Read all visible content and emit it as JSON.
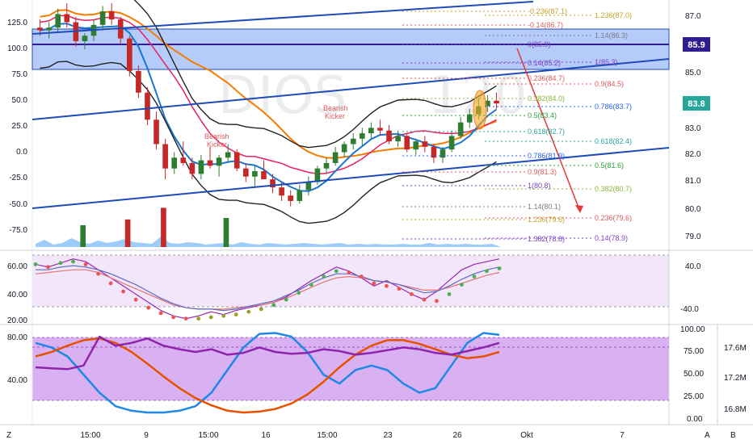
{
  "watermark": {
    "symbol": "DIOS",
    "interval": "120"
  },
  "price_badges": {
    "current": "83.8",
    "level": "85.9"
  },
  "left_axis": {
    "main_ticks": [
      "125.0",
      "100.0",
      "75.0",
      "50.0",
      "25.0",
      "0.0",
      "-25.0",
      "-50.0",
      "-75.0"
    ],
    "rsi_ticks": [
      "60.00",
      "40.00",
      "20.00"
    ],
    "stoch_ticks": [
      "80.00",
      "40.00"
    ]
  },
  "right_axis": {
    "price_ticks": [
      "87.0",
      "86.0",
      "85.0",
      "84.0",
      "83.0",
      "82.0",
      "81.0",
      "80.0",
      "79.0"
    ],
    "rsi_ticks": [
      "40.0",
      "-40.0"
    ],
    "stoch_ticks": [
      "100.00",
      "75.00",
      "50.00",
      "25.00",
      "0.00"
    ],
    "volume_ticks": [
      "17.6M",
      "17.2M",
      "16.8M"
    ]
  },
  "time_axis": {
    "labels": [
      "15:00",
      "9",
      "15:00",
      "16",
      "15:00",
      "23",
      "26",
      "Okt",
      "7"
    ]
  },
  "corner_buttons": {
    "left": "Z",
    "auto": "A",
    "log": "B"
  },
  "annotations": [
    {
      "text": "Bearish",
      "sub": "Kicker"
    },
    {
      "text": "Bearish",
      "sub": "Kicker"
    }
  ],
  "fib_left": [
    {
      "label": "-0.236(87.1)",
      "color": "#c9a227"
    },
    {
      "label": "-0.14(86.7)",
      "color": "#e05a5a"
    },
    {
      "label": "0(85.9)",
      "color": "#7b3fbf"
    },
    {
      "label": "0.14(85.2)",
      "color": "#7b3fbf"
    },
    {
      "label": "0.236(84.7)",
      "color": "#e05a5a"
    },
    {
      "label": "0.382(84.0)",
      "color": "#8bb83a"
    },
    {
      "label": "0.5(83.4)",
      "color": "#2e9e3e"
    },
    {
      "label": "0.618(82.7)",
      "color": "#26a69a"
    },
    {
      "label": "0.786(81.9)",
      "color": "#2962ff"
    },
    {
      "label": "0.9(81.3)",
      "color": "#e05a5a"
    },
    {
      "label": "1(80.8)",
      "color": "#7b3fbf"
    },
    {
      "label": "1.14(80.1)",
      "color": "#787b86"
    },
    {
      "label": "1.236(79.6)",
      "color": "#c9a227"
    },
    {
      "label": "1.382(78.8)",
      "color": "#7b3fbf"
    }
  ],
  "fib_right": [
    {
      "label": "1.236(87.0)",
      "color": "#c9a227"
    },
    {
      "label": "1.14(86.3)",
      "color": "#787b86"
    },
    {
      "label": "1(85.3)",
      "color": "#7b3fbf"
    },
    {
      "label": "0.9(84.5)",
      "color": "#e05a5a"
    },
    {
      "label": "0.786(83.7)",
      "color": "#2962ff"
    },
    {
      "label": "0.618(82.4)",
      "color": "#26a69a"
    },
    {
      "label": "0.5(81.6)",
      "color": "#2e9e3e"
    },
    {
      "label": "0.382(80.7)",
      "color": "#8bb83a"
    },
    {
      "label": "0.236(79.6)",
      "color": "#e05a5a"
    },
    {
      "label": "0.14(78.9)",
      "color": "#7b3fbf"
    }
  ],
  "colors": {
    "up": "#2e7d32",
    "down": "#c62828",
    "blue": "#1e4bb8",
    "zone": "#5b8ff5",
    "orange": "#f57c00",
    "purple": "#9c27b0",
    "level": "#311b92",
    "price": "#26a69a"
  },
  "chart_data": [
    {
      "type": "candlestick",
      "description_scale": "price 78.5–87.5",
      "price_axis": [
        78.5,
        87.5
      ],
      "candles": [
        [
          86.6,
          86.9,
          86.3,
          86.5
        ],
        [
          86.5,
          86.8,
          86.2,
          86.6
        ],
        [
          86.6,
          87.3,
          86.4,
          87.1
        ],
        [
          87.1,
          87.5,
          86.6,
          86.8
        ],
        [
          86.8,
          87.0,
          85.9,
          86.1
        ],
        [
          86.1,
          86.4,
          85.8,
          86.3
        ],
        [
          86.3,
          86.9,
          86.1,
          86.7
        ],
        [
          86.7,
          87.4,
          86.5,
          87.2
        ],
        [
          87.2,
          87.5,
          86.7,
          86.9
        ],
        [
          86.9,
          87.0,
          86.0,
          86.2
        ],
        [
          86.2,
          86.3,
          84.8,
          85.0
        ],
        [
          85.0,
          85.2,
          84.0,
          84.2
        ],
        [
          84.2,
          84.4,
          83.0,
          83.2
        ],
        [
          83.2,
          83.5,
          82.1,
          82.3
        ],
        [
          82.3,
          82.5,
          81.0,
          81.4
        ],
        [
          81.4,
          82.0,
          81.2,
          81.8
        ],
        [
          81.8,
          82.4,
          81.5,
          81.6
        ],
        [
          81.6,
          81.8,
          81.0,
          81.2
        ],
        [
          81.2,
          81.9,
          81.0,
          81.7
        ],
        [
          81.7,
          82.2,
          81.4,
          81.5
        ],
        [
          81.5,
          81.9,
          81.1,
          81.8
        ],
        [
          81.8,
          82.3,
          81.6,
          82.0
        ],
        [
          82.0,
          82.1,
          81.3,
          81.4
        ],
        [
          81.4,
          81.6,
          80.9,
          81.1
        ],
        [
          81.1,
          81.5,
          80.7,
          81.3
        ],
        [
          81.3,
          81.7,
          81.0,
          81.0
        ],
        [
          81.0,
          81.2,
          80.5,
          80.7
        ],
        [
          80.7,
          80.9,
          80.2,
          80.4
        ],
        [
          80.4,
          80.6,
          80.0,
          80.2
        ],
        [
          80.2,
          80.8,
          80.1,
          80.6
        ],
        [
          80.6,
          81.1,
          80.4,
          80.9
        ],
        [
          80.9,
          81.5,
          80.8,
          81.4
        ],
        [
          81.4,
          81.8,
          81.2,
          81.6
        ],
        [
          81.6,
          82.2,
          81.5,
          82.0
        ],
        [
          82.0,
          82.4,
          81.8,
          82.3
        ],
        [
          82.3,
          82.7,
          82.1,
          82.5
        ],
        [
          82.5,
          82.9,
          82.2,
          82.7
        ],
        [
          82.7,
          83.1,
          82.5,
          82.9
        ],
        [
          82.9,
          83.2,
          82.6,
          82.8
        ],
        [
          82.8,
          83.0,
          82.3,
          82.4
        ],
        [
          82.4,
          82.8,
          82.2,
          82.6
        ],
        [
          82.6,
          82.7,
          82.0,
          82.1
        ],
        [
          82.1,
          82.5,
          81.9,
          82.4
        ],
        [
          82.4,
          82.6,
          82.0,
          82.2
        ],
        [
          82.2,
          82.3,
          81.6,
          81.8
        ],
        [
          81.8,
          82.2,
          81.6,
          82.1
        ],
        [
          82.1,
          82.8,
          82.0,
          82.6
        ],
        [
          82.6,
          83.3,
          82.5,
          83.1
        ],
        [
          83.1,
          83.6,
          82.9,
          83.4
        ],
        [
          83.4,
          84.0,
          83.2,
          83.7
        ],
        [
          83.7,
          84.1,
          83.5,
          83.9
        ],
        [
          83.9,
          84.2,
          83.6,
          83.8
        ]
      ],
      "volume": [
        0.4,
        0.9,
        0.3,
        0.5,
        1.1,
        0.6,
        0.4,
        0.8,
        0.5,
        0.7,
        1.0,
        0.6,
        0.5,
        0.4,
        1.3,
        0.5,
        0.4,
        0.6,
        0.5,
        0.3,
        0.4,
        0.5,
        0.3,
        0.6,
        0.4,
        0.3,
        0.5,
        0.4,
        0.3,
        0.4,
        0.5,
        0.4,
        0.3,
        0.4,
        0.5,
        0.3,
        0.4,
        0.3,
        0.4,
        0.3,
        0.3,
        0.4,
        0.3,
        0.3,
        0.5,
        0.3,
        0.4,
        0.3,
        0.4,
        0.3,
        0.3,
        0.4
      ],
      "volume_spikes": [
        [
          14,
          2.7
        ],
        [
          10,
          1.9
        ],
        [
          21,
          2.0
        ],
        [
          5,
          1.5
        ]
      ]
    },
    {
      "type": "line",
      "name_hidden": true,
      "ylim": [
        20,
        70
      ],
      "series": [
        {
          "color": "#9c27b0",
          "values": [
            62,
            60,
            63,
            66,
            64,
            58,
            52,
            46,
            40,
            34,
            28,
            24,
            22,
            24,
            27,
            25,
            28,
            30,
            32,
            34,
            38,
            44,
            50,
            55,
            60,
            57,
            52,
            46,
            50,
            45,
            40,
            36,
            42,
            50,
            58,
            62,
            64,
            66
          ]
        },
        {
          "color": "#e57373",
          "values": [
            55,
            56,
            57,
            58,
            58,
            56,
            52,
            48,
            44,
            40,
            36,
            32,
            30,
            29,
            29,
            29,
            30,
            31,
            32,
            34,
            37,
            41,
            45,
            49,
            52,
            53,
            52,
            50,
            49,
            47,
            45,
            43,
            43,
            45,
            48,
            51,
            54,
            56
          ]
        },
        {
          "color": "#5c6bc0",
          "values": [
            58,
            58,
            60,
            61,
            60,
            58,
            55,
            51,
            47,
            42,
            37,
            33,
            30,
            29,
            29,
            28,
            29,
            31,
            33,
            35,
            39,
            43,
            48,
            52,
            55,
            55,
            53,
            50,
            49,
            47,
            44,
            41,
            42,
            46,
            51,
            55,
            58,
            60
          ]
        }
      ],
      "dots": [
        62,
        60,
        63,
        64,
        62,
        55,
        48,
        42,
        36,
        30,
        26,
        23,
        22,
        22,
        23,
        24,
        25,
        27,
        29,
        32,
        36,
        41,
        47,
        53,
        57,
        56,
        53,
        48,
        46,
        44,
        40,
        36,
        35,
        40,
        47,
        53,
        57,
        59
      ]
    },
    {
      "type": "line",
      "ylim": [
        0,
        100
      ],
      "series": [
        {
          "color": "#1e88e5",
          "width": 2.5,
          "values": [
            85,
            80,
            70,
            50,
            30,
            15,
            10,
            8,
            8,
            10,
            15,
            30,
            55,
            80,
            95,
            96,
            92,
            75,
            50,
            40,
            55,
            60,
            55,
            40,
            30,
            35,
            60,
            85,
            96,
            94
          ]
        },
        {
          "color": "#e65100",
          "width": 2.5,
          "values": [
            70,
            75,
            82,
            88,
            90,
            85,
            75,
            62,
            48,
            35,
            24,
            16,
            10,
            8,
            9,
            12,
            18,
            28,
            42,
            58,
            72,
            82,
            88,
            88,
            84,
            78,
            72,
            68,
            70,
            75
          ]
        },
        {
          "color": "#8e24aa",
          "width": 2.5,
          "values": [
            58,
            57,
            56,
            60,
            92,
            82,
            85,
            90,
            82,
            78,
            75,
            78,
            72,
            74,
            80,
            75,
            73,
            74,
            78,
            76,
            72,
            74,
            77,
            80,
            78,
            74,
            72,
            76,
            80,
            85
          ]
        }
      ]
    }
  ]
}
